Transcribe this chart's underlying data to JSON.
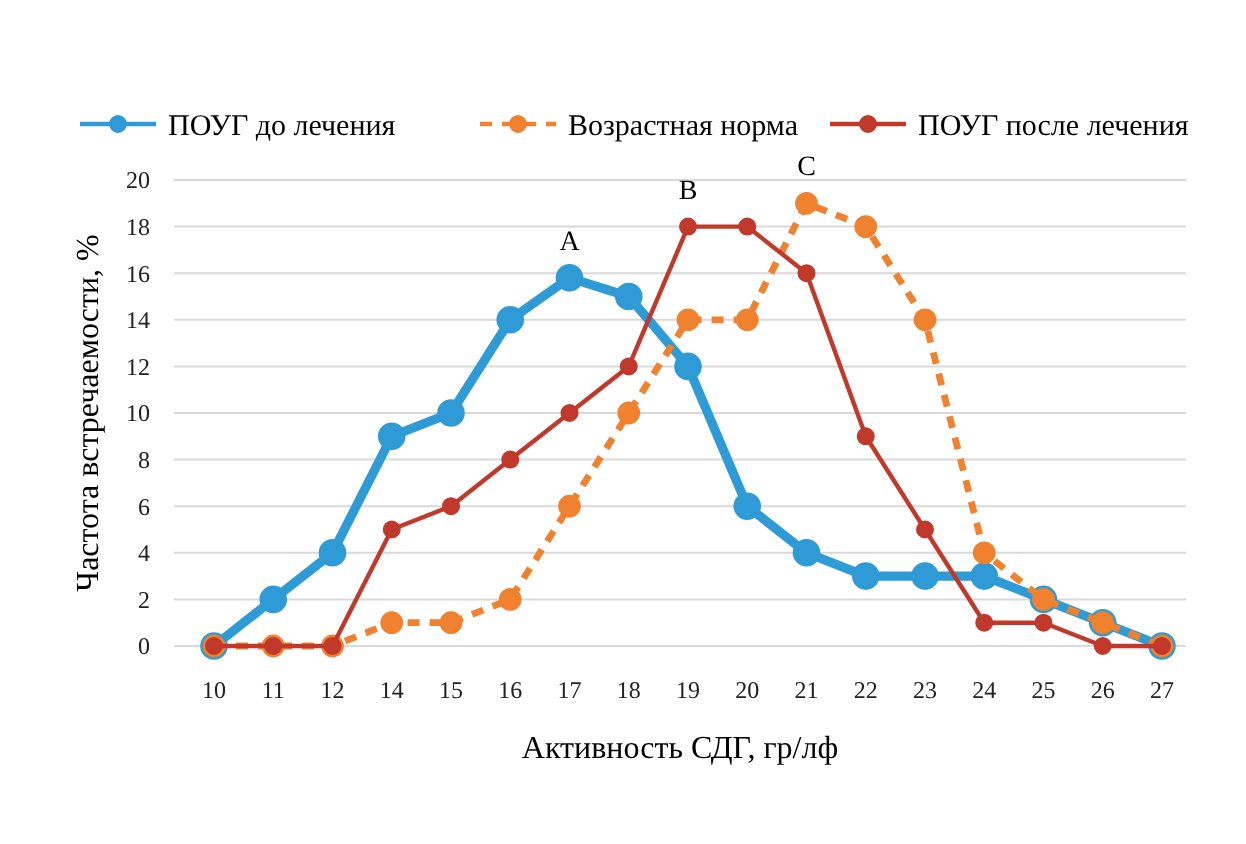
{
  "chart_data": {
    "type": "line",
    "xlabel": "Активность СДГ, гр/лф",
    "ylabel": "Частота встречаемости, %",
    "categories": [
      "10",
      "11",
      "12",
      "14",
      "15",
      "16",
      "17",
      "18",
      "19",
      "20",
      "21",
      "22",
      "23",
      "24",
      "25",
      "26",
      "27"
    ],
    "series": [
      {
        "name": "ПОУГ до лечения",
        "color": "#2e9bd6",
        "line_style": "solid",
        "values": [
          0,
          2,
          4,
          9,
          10,
          14,
          15.8,
          15,
          12,
          6,
          4,
          3,
          3,
          3,
          2,
          1,
          0
        ]
      },
      {
        "name": "Возрастная норма",
        "color": "#f0812e",
        "line_style": "dashed",
        "values": [
          0,
          0,
          0,
          1,
          1,
          2,
          6,
          10,
          14,
          14,
          19,
          18,
          14,
          4,
          2,
          1,
          0
        ]
      },
      {
        "name": "ПОУГ после лечения",
        "color": "#c0392b",
        "line_style": "solid",
        "values": [
          0,
          0,
          0,
          5,
          6,
          8,
          10,
          12,
          18,
          18,
          16,
          9,
          5,
          1,
          1,
          0,
          0
        ]
      }
    ],
    "ylim": [
      0,
      20
    ],
    "yticks": [
      0,
      2,
      4,
      6,
      8,
      10,
      12,
      14,
      16,
      18,
      20
    ],
    "grid": "y",
    "legend": "top",
    "marker": "circle",
    "annotations": [
      {
        "text": "A",
        "x": "17",
        "y": 15.8
      },
      {
        "text": "B",
        "x": "19",
        "y": 18
      },
      {
        "text": "C",
        "x": "21",
        "y": 19
      }
    ]
  }
}
